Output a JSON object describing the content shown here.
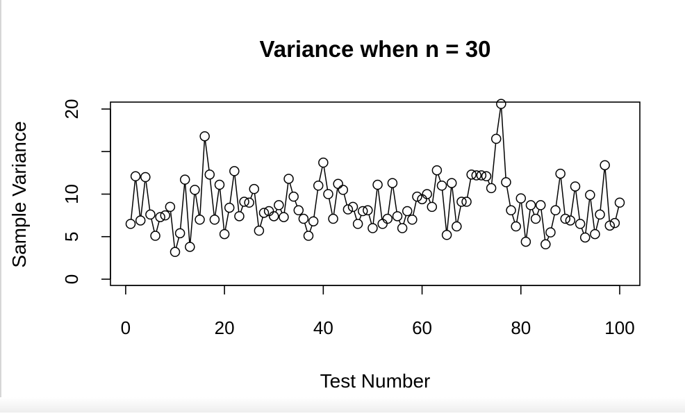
{
  "chart_data": {
    "type": "line",
    "title": "Variance when n = 30",
    "xlabel": "Test Number",
    "ylabel": "Sample Variance",
    "xlim": [
      1,
      100
    ],
    "ylim": [
      0,
      20
    ],
    "x_ticks": [
      0,
      20,
      40,
      60,
      80,
      100
    ],
    "y_ticks": [
      0,
      5,
      10,
      15,
      20
    ],
    "y_tick_labels_shown": [
      "0",
      "5",
      "10",
      "20"
    ],
    "marker": "open-circle",
    "grid": false,
    "legend": "none",
    "colors": {
      "line": "#000000",
      "marker": "#000000",
      "background": "#ffffff"
    },
    "series": [
      {
        "x": [
          1,
          2,
          3,
          4,
          5,
          6,
          7,
          8,
          9,
          10,
          11,
          12,
          13,
          14,
          15,
          16,
          17,
          18,
          19,
          20,
          21,
          22,
          23,
          24,
          25,
          26,
          27,
          28,
          29,
          30,
          31,
          32,
          33,
          34,
          35,
          36,
          37,
          38,
          39,
          40,
          41,
          42,
          43,
          44,
          45,
          46,
          47,
          48,
          49,
          50,
          51,
          52,
          53,
          54,
          55,
          56,
          57,
          58,
          59,
          60,
          61,
          62,
          63,
          64,
          65,
          66,
          67,
          68,
          69,
          70,
          71,
          72,
          73,
          74,
          75,
          76,
          77,
          78,
          79,
          80,
          81,
          82,
          83,
          84,
          85,
          86,
          87,
          88,
          89,
          90,
          91,
          92,
          93,
          94,
          95,
          96,
          97,
          98,
          99,
          100
        ],
        "values": [
          6.5,
          12.1,
          6.9,
          12.0,
          7.6,
          5.1,
          7.3,
          7.5,
          8.5,
          3.2,
          5.4,
          11.7,
          3.8,
          10.5,
          7.0,
          16.8,
          12.3,
          7.0,
          11.1,
          5.3,
          8.4,
          12.7,
          7.4,
          9.1,
          9.0,
          10.6,
          5.7,
          7.8,
          8.0,
          7.4,
          8.7,
          7.3,
          11.8,
          9.7,
          8.1,
          7.1,
          5.1,
          6.8,
          11.0,
          13.7,
          10.0,
          7.1,
          11.2,
          10.5,
          8.2,
          8.5,
          6.5,
          8.0,
          8.1,
          6.0,
          11.1,
          6.5,
          7.1,
          11.3,
          7.4,
          6.0,
          8.0,
          7.0,
          9.7,
          9.4,
          10.0,
          8.5,
          12.8,
          11.0,
          5.2,
          11.3,
          6.2,
          9.1,
          9.1,
          12.3,
          12.2,
          12.2,
          12.1,
          10.7,
          16.5,
          20.6,
          11.4,
          8.1,
          6.2,
          9.5,
          4.4,
          8.7,
          7.1,
          8.7,
          4.1,
          5.5,
          8.1,
          12.4,
          7.1,
          6.9,
          10.9,
          6.5,
          4.9,
          9.9,
          5.3,
          7.6,
          13.4,
          6.3,
          6.6,
          9.0
        ]
      }
    ]
  }
}
